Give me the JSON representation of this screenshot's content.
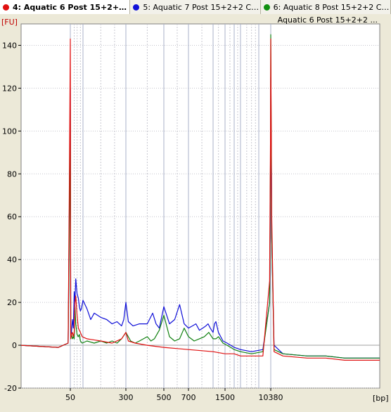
{
  "tabs": [
    {
      "label": "4: Aquatic 6 Post 15+2+2 ...",
      "color": "#e01010",
      "active": true
    },
    {
      "label": "5: Aquatic 7 Post 15+2+2 Cy...",
      "color": "#1010d8",
      "active": false
    },
    {
      "label": "6: Aquatic 8 Post 15+2+2 Cy...",
      "color": "#109010",
      "active": false
    }
  ],
  "chart_data": {
    "type": "line",
    "title": "",
    "legend": {
      "entries": [
        "Aquatic 6 Post 15+2+2 ..."
      ],
      "placement": "top-right"
    },
    "ylabel": "[FU]",
    "xlabel": "[bp]",
    "ylim": [
      -20,
      150
    ],
    "grid": true,
    "x_ticks": [
      "50",
      "300",
      "500",
      "700",
      "1500",
      "10380"
    ],
    "y_ticks": [
      -20,
      0,
      20,
      40,
      60,
      80,
      100,
      120,
      140
    ],
    "colors": {
      "sample4": "#e01010",
      "sample5": "#1010d8",
      "sample6": "#108010"
    },
    "ladder_bp": [
      50,
      150,
      300,
      500,
      700,
      1000,
      1500,
      2000,
      3000,
      7000,
      10380
    ],
    "series": [
      {
        "key": "sample5",
        "x": [
          20,
          40,
          48,
          49,
          50,
          51,
          52,
          55,
          60,
          65,
          70,
          75,
          80,
          90,
          100,
          110,
          120,
          130,
          150,
          160,
          170,
          180,
          200,
          220,
          240,
          260,
          280,
          290,
          300,
          310,
          330,
          360,
          400,
          430,
          450,
          470,
          500,
          540,
          580,
          620,
          660,
          700,
          740,
          780,
          820,
          860,
          900,
          930,
          960,
          1000,
          1050,
          1100,
          1200,
          1400,
          1600,
          1800,
          2000,
          3000,
          5000,
          8000,
          10000,
          10300,
          10380,
          10500,
          10800,
          12000,
          16000,
          20000,
          25000,
          30000,
          38000
        ],
        "y": [
          0,
          -1,
          1,
          60,
          120,
          60,
          5,
          6,
          12,
          8,
          25,
          20,
          31,
          24,
          22,
          18,
          16,
          17,
          21,
          17,
          12,
          15,
          13,
          12,
          10,
          11,
          9,
          12,
          20,
          11,
          9,
          10,
          10,
          15,
          10,
          8,
          18,
          10,
          12,
          19,
          10,
          8,
          9,
          10,
          7,
          8,
          9,
          10,
          8,
          6,
          10,
          11,
          6,
          2,
          1,
          0,
          -1,
          -2,
          -3,
          -2,
          20,
          80,
          125,
          50,
          0,
          -4,
          -5,
          -5,
          -6,
          -6,
          -6
        ]
      },
      {
        "key": "sample6",
        "x": [
          20,
          40,
          48,
          49,
          50,
          51,
          52,
          55,
          60,
          65,
          70,
          75,
          80,
          90,
          100,
          110,
          120,
          140,
          160,
          180,
          200,
          220,
          240,
          260,
          280,
          300,
          320,
          340,
          360,
          380,
          400,
          420,
          440,
          470,
          500,
          540,
          580,
          620,
          660,
          700,
          760,
          820,
          880,
          940,
          1000,
          1100,
          1200,
          1400,
          1600,
          1800,
          2000,
          3000,
          5000,
          8000,
          10000,
          10300,
          10380,
          10500,
          10800,
          12000,
          16000,
          20000,
          25000,
          30000,
          38000
        ],
        "y": [
          0,
          -1,
          1,
          50,
          110,
          50,
          3,
          5,
          3,
          4,
          3,
          18,
          10,
          5,
          4,
          5,
          2,
          1,
          2,
          1,
          2,
          1,
          2,
          1,
          3,
          6,
          2,
          1,
          2,
          3,
          4,
          2,
          3,
          7,
          14,
          4,
          2,
          3,
          8,
          4,
          2,
          3,
          4,
          6,
          3,
          3,
          4,
          1,
          0,
          -1,
          -2,
          -3,
          -4,
          -3,
          20,
          90,
          145,
          50,
          -2,
          -4,
          -5,
          -5,
          -6,
          -6,
          -6
        ]
      },
      {
        "key": "sample4",
        "x": [
          20,
          40,
          48,
          49,
          50,
          51,
          52,
          55,
          60,
          65,
          70,
          75,
          80,
          90,
          100,
          120,
          140,
          160,
          200,
          240,
          280,
          300,
          310,
          340,
          400,
          500,
          700,
          1000,
          1500,
          2000,
          3000,
          5000,
          8000,
          10000,
          10300,
          10380,
          10500,
          10800,
          12000,
          16000,
          20000,
          25000,
          30000,
          38000
        ],
        "y": [
          0,
          -1,
          1,
          70,
          143,
          70,
          3,
          5,
          6,
          4,
          6,
          20,
          23,
          14,
          8,
          6,
          4,
          3,
          2,
          1,
          3,
          6,
          2,
          1,
          0,
          -1,
          -2,
          -3,
          -4,
          -4,
          -5,
          -5,
          -5,
          30,
          100,
          143,
          60,
          -3,
          -5,
          -6,
          -6,
          -7,
          -7,
          -7
        ]
      }
    ]
  }
}
